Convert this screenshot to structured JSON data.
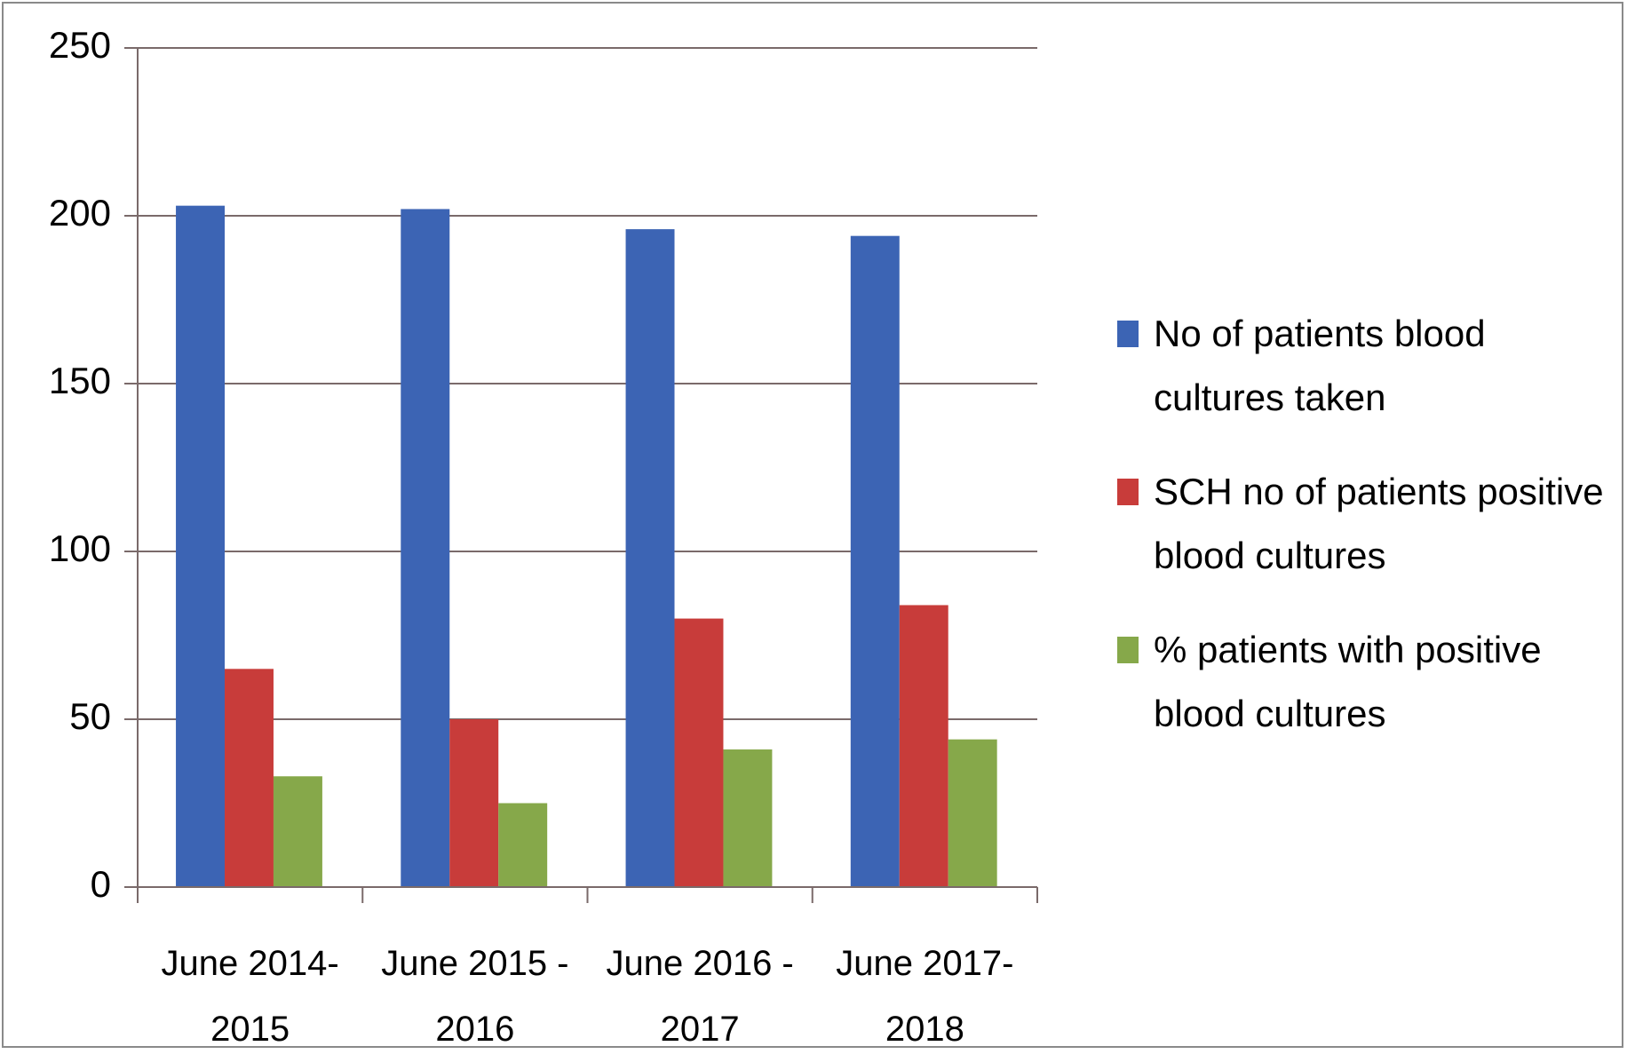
{
  "chart_data": {
    "type": "bar",
    "categories": [
      "June 2014-2015",
      "June 2015 - 2016",
      "June 2016 - 2017",
      "June 2017-2018"
    ],
    "series": [
      {
        "name": "No of patients blood cultures taken",
        "color": "#3c64b4",
        "values": [
          203,
          202,
          196,
          194
        ]
      },
      {
        "name": "SCH no of patients positive blood cultures",
        "color": "#c83c3a",
        "values": [
          65,
          50,
          80,
          84
        ]
      },
      {
        "name": "% patients with positive blood cultures",
        "color": "#86a84a",
        "values": [
          33,
          25,
          41,
          44
        ]
      }
    ],
    "ylim": [
      0,
      250
    ],
    "yticks": [
      0,
      50,
      100,
      150,
      200,
      250
    ],
    "grid": true,
    "legend": "right"
  }
}
